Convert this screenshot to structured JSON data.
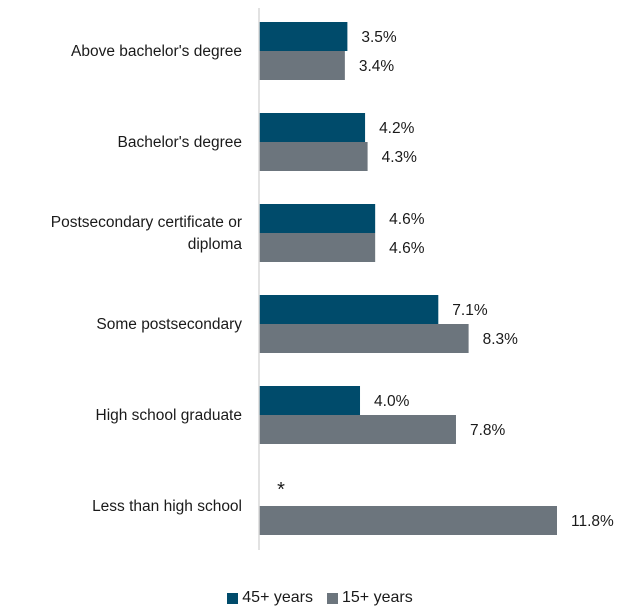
{
  "chart_data": {
    "type": "bar",
    "orientation": "horizontal",
    "categories": [
      [
        "Above bachelor's degree"
      ],
      [
        "Bachelor's degree"
      ],
      [
        "Postsecondary certificate or",
        "diploma"
      ],
      [
        "Some postsecondary"
      ],
      [
        "High school graduate"
      ],
      [
        "Less than high school"
      ]
    ],
    "series": [
      {
        "name": "45+ years",
        "color": "#004b6b",
        "values": [
          3.5,
          4.2,
          4.6,
          7.1,
          4.0,
          null
        ],
        "labels": [
          "3.5%",
          "4.2%",
          "4.6%",
          "7.1%",
          "4.0%",
          null
        ]
      },
      {
        "name": "15+ years",
        "color": "#6c757d",
        "values": [
          3.4,
          4.3,
          4.6,
          8.3,
          7.8,
          11.8
        ],
        "labels": [
          "3.4%",
          "4.3%",
          "4.6%",
          "8.3%",
          "7.8%",
          "11.8%"
        ]
      }
    ],
    "missing_marker": "*",
    "xlim": [
      0,
      12
    ],
    "legend_position": "bottom",
    "axis_line_color": "#d9d9d9"
  }
}
